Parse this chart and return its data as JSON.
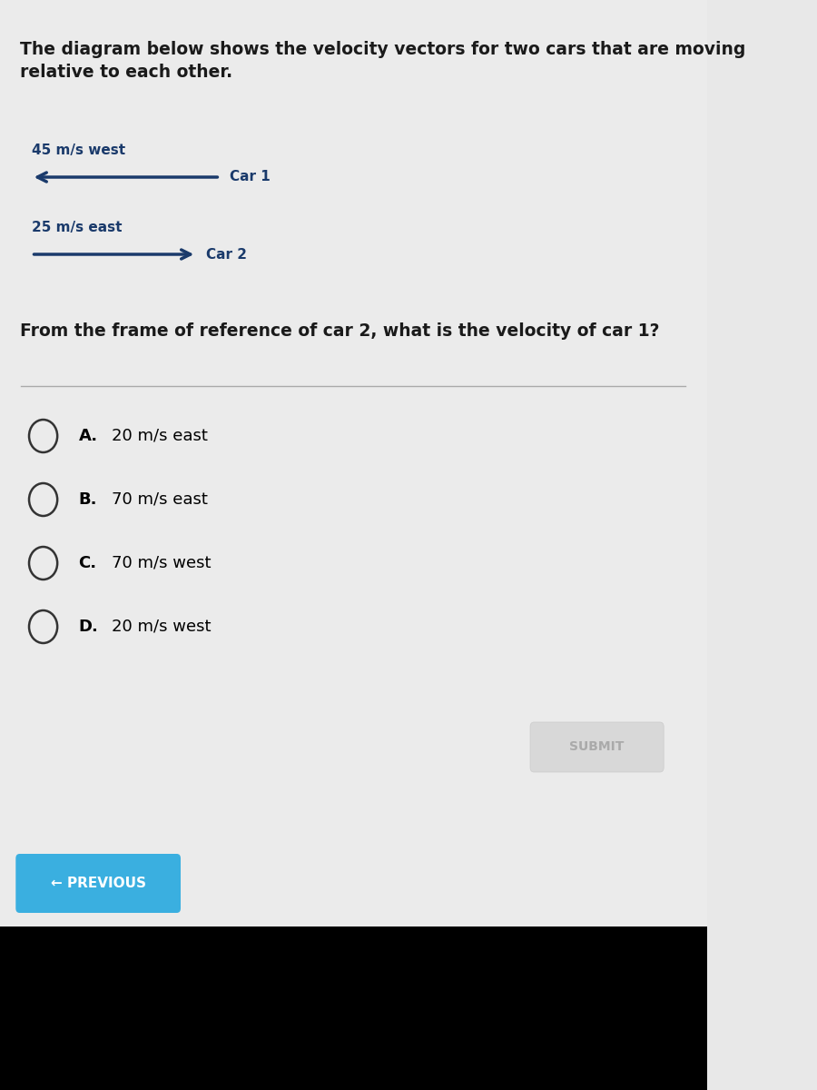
{
  "title_text": "The diagram below shows the velocity vectors for two cars that are moving\nrelative to each other.",
  "car1_label": "45 m/s west",
  "car1_name": "Car 1",
  "car2_label": "25 m/s east",
  "car2_name": "Car 2",
  "question_text": "From the frame of reference of car 2, what is the velocity of car 1?",
  "options": [
    {
      "letter": "A.",
      "text": "20 m/s east"
    },
    {
      "letter": "B.",
      "text": "70 m/s east"
    },
    {
      "letter": "C.",
      "text": "70 m/s west"
    },
    {
      "letter": "D.",
      "text": "20 m/s west"
    }
  ],
  "submit_text": "SUBMIT",
  "previous_text": "← PREVIOUS",
  "bg_color": "#e8e8e8",
  "content_bg": "#f0f0f0",
  "arrow_color": "#1a3a6b",
  "text_color": "#1a1a1a",
  "option_letter_color": "#000000",
  "submit_bg": "#d0d0d0",
  "submit_text_color": "#aaaaaa",
  "previous_bg": "#3aafe0",
  "previous_text_color": "#ffffff",
  "bottom_bg": "#000000"
}
